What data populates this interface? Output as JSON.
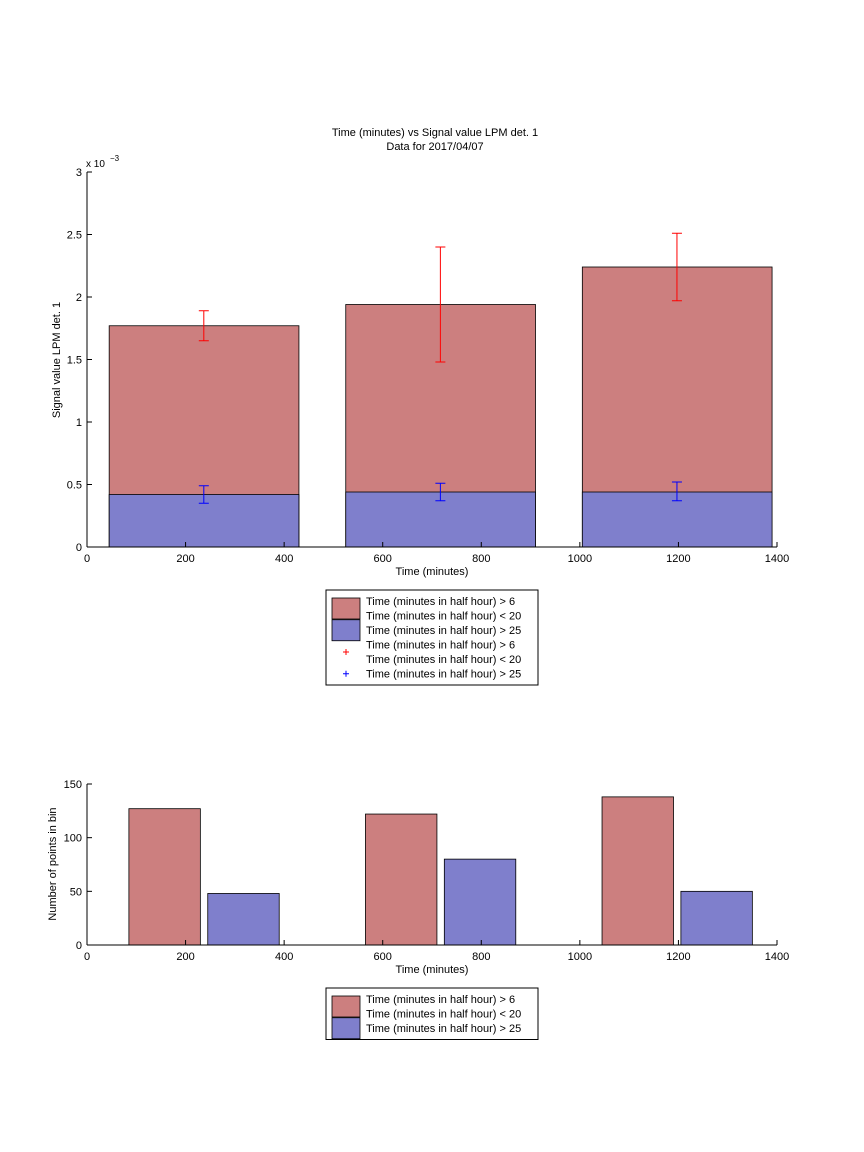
{
  "colors": {
    "red_fill": "#cc7f7f",
    "blue_fill": "#7f7fcc",
    "red_error": "#ff0000",
    "blue_error": "#0000ff",
    "axis": "#000000",
    "background": "#ffffff"
  },
  "chart_data": [
    {
      "type": "bar",
      "title": "Time (minutes) vs Signal value LPM det. 1",
      "subtitle": "Data for 2017/04/07",
      "xlabel": "Time (minutes)",
      "ylabel": "Signal value LPM det. 1",
      "y_scale_label": "x 10",
      "y_scale_exponent": "−3",
      "xlim": [
        0,
        1400
      ],
      "ylim": [
        0,
        3
      ],
      "x_ticks": [
        0,
        200,
        400,
        600,
        800,
        1000,
        1200,
        1400
      ],
      "y_ticks": [
        0,
        0.5,
        1,
        1.5,
        2,
        2.5,
        3
      ],
      "x_tick_labels": [
        "0",
        "200",
        "400",
        "600",
        "800",
        "1000",
        "1200",
        "1400"
      ],
      "y_tick_labels": [
        "0",
        "0.5",
        "1",
        "1.5",
        "2",
        "2.5",
        "3"
      ],
      "grid": false,
      "legend_position": "below",
      "bars": [
        {
          "x0": 45,
          "x1": 430,
          "red": 1.77,
          "blue": 0.42
        },
        {
          "x0": 525,
          "x1": 910,
          "red": 1.94,
          "blue": 0.44
        },
        {
          "x0": 1005,
          "x1": 1390,
          "red": 2.24,
          "blue": 0.44
        }
      ],
      "error_bars": [
        {
          "series": "red",
          "x": 237,
          "lo": 1.65,
          "hi": 1.89
        },
        {
          "series": "red",
          "x": 717,
          "lo": 1.48,
          "hi": 2.4
        },
        {
          "series": "red",
          "x": 1197,
          "lo": 1.97,
          "hi": 2.51
        },
        {
          "series": "blue",
          "x": 237,
          "lo": 0.35,
          "hi": 0.49
        },
        {
          "series": "blue",
          "x": 717,
          "lo": 0.37,
          "hi": 0.51
        },
        {
          "series": "blue",
          "x": 1197,
          "lo": 0.37,
          "hi": 0.52
        }
      ],
      "legend": [
        {
          "series": "red",
          "kind": "patch",
          "lines": [
            "Time (minutes in half hour) > 6",
            "Time (minutes in half hour) < 20"
          ]
        },
        {
          "series": "blue",
          "kind": "patch",
          "lines": [
            "Time (minutes in half hour) > 25"
          ]
        },
        {
          "series": "red",
          "kind": "marker",
          "lines": [
            "Time (minutes in half hour) > 6",
            "Time (minutes in half hour) < 20"
          ]
        },
        {
          "series": "blue",
          "kind": "marker",
          "lines": [
            "Time (minutes in half hour) > 25"
          ]
        }
      ]
    },
    {
      "type": "bar",
      "xlabel": "Time (minutes)",
      "ylabel": "Number of points in bin",
      "xlim": [
        0,
        1400
      ],
      "ylim": [
        0,
        150
      ],
      "x_ticks": [
        0,
        200,
        400,
        600,
        800,
        1000,
        1200,
        1400
      ],
      "y_ticks": [
        0,
        50,
        100,
        150
      ],
      "x_tick_labels": [
        "0",
        "200",
        "400",
        "600",
        "800",
        "1000",
        "1200",
        "1400"
      ],
      "y_tick_labels": [
        "0",
        "50",
        "100",
        "150"
      ],
      "grid": false,
      "legend_position": "below",
      "bars": [
        {
          "series": "red",
          "x0": 85,
          "x1": 230,
          "value": 127
        },
        {
          "series": "blue",
          "x0": 245,
          "x1": 390,
          "value": 48
        },
        {
          "series": "red",
          "x0": 565,
          "x1": 710,
          "value": 122
        },
        {
          "series": "blue",
          "x0": 725,
          "x1": 870,
          "value": 80
        },
        {
          "series": "red",
          "x0": 1045,
          "x1": 1190,
          "value": 138
        },
        {
          "series": "blue",
          "x0": 1205,
          "x1": 1350,
          "value": 50
        }
      ],
      "legend": [
        {
          "series": "red",
          "kind": "patch",
          "lines": [
            "Time (minutes in half hour) > 6",
            "Time (minutes in half hour) < 20"
          ]
        },
        {
          "series": "blue",
          "kind": "patch",
          "lines": [
            "Time (minutes in half hour) > 25"
          ]
        }
      ]
    }
  ]
}
